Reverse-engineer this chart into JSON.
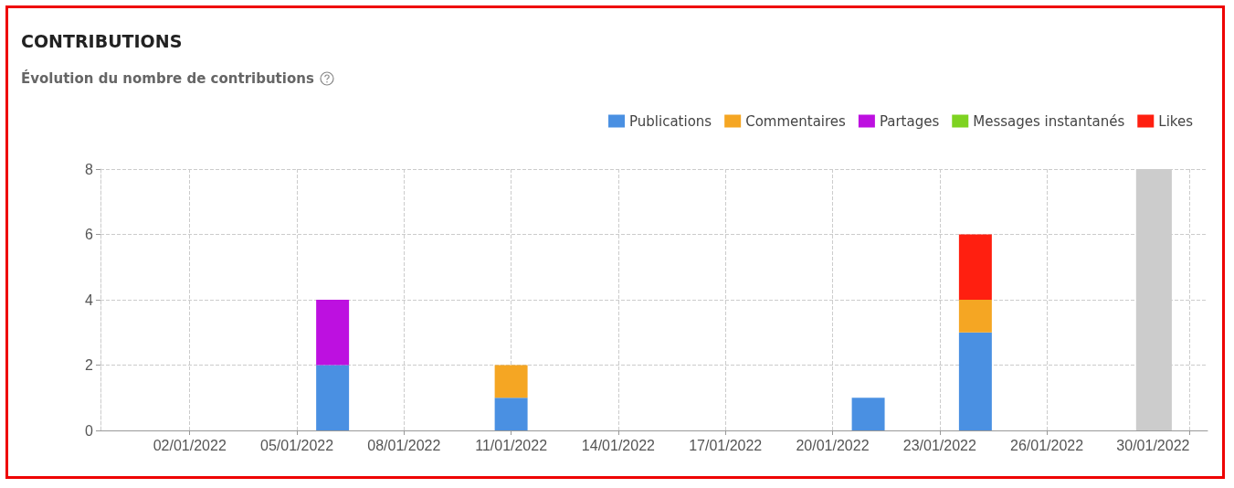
{
  "chart_data": {
    "type": "bar",
    "title": "CONTRIBUTIONS",
    "subtitle": "Évolution du nombre de contributions",
    "stacked": true,
    "x": [
      "2022-01-06",
      "2022-01-11",
      "2022-01-21",
      "2022-01-24"
    ],
    "series": [
      {
        "name": "Publications",
        "color": "#4a90e2",
        "values": [
          2,
          1,
          1,
          3
        ]
      },
      {
        "name": "Commentaires",
        "color": "#f5a623",
        "values": [
          null,
          1,
          null,
          1
        ]
      },
      {
        "name": "Partages",
        "color": "#bd10e0",
        "values": [
          2,
          null,
          null,
          null
        ]
      },
      {
        "name": "Messages instantanés",
        "color": "#7ed321",
        "values": [
          null,
          null,
          null,
          null
        ]
      },
      {
        "name": "Likes",
        "color": "#ff1f10",
        "values": [
          null,
          null,
          null,
          2
        ]
      }
    ],
    "xlim": [
      "2021-12-30T12:00",
      "2022-01-30T12:00"
    ],
    "xticks": [
      {
        "value": "2022-01-02",
        "label": "02/01/2022"
      },
      {
        "value": "2022-01-05",
        "label": "05/01/2022"
      },
      {
        "value": "2022-01-08",
        "label": "08/01/2022"
      },
      {
        "value": "2022-01-11",
        "label": "11/01/2022"
      },
      {
        "value": "2022-01-14",
        "label": "14/01/2022"
      },
      {
        "value": "2022-01-17",
        "label": "17/01/2022"
      },
      {
        "value": "2022-01-20",
        "label": "20/01/2022"
      },
      {
        "value": "2022-01-23",
        "label": "23/01/2022"
      },
      {
        "value": "2022-01-26",
        "label": "26/01/2022"
      },
      {
        "value": "2022-01-30",
        "label": "30/01/2022"
      }
    ],
    "ylim": [
      0,
      8
    ],
    "yticks": [
      0,
      2,
      4,
      6,
      8
    ],
    "bands": [
      {
        "axis": "x",
        "from": "2022-01-28T12:00",
        "to": "2022-01-29T12:00",
        "color": "#cccccc"
      }
    ],
    "grid": true,
    "legend": "top right"
  }
}
